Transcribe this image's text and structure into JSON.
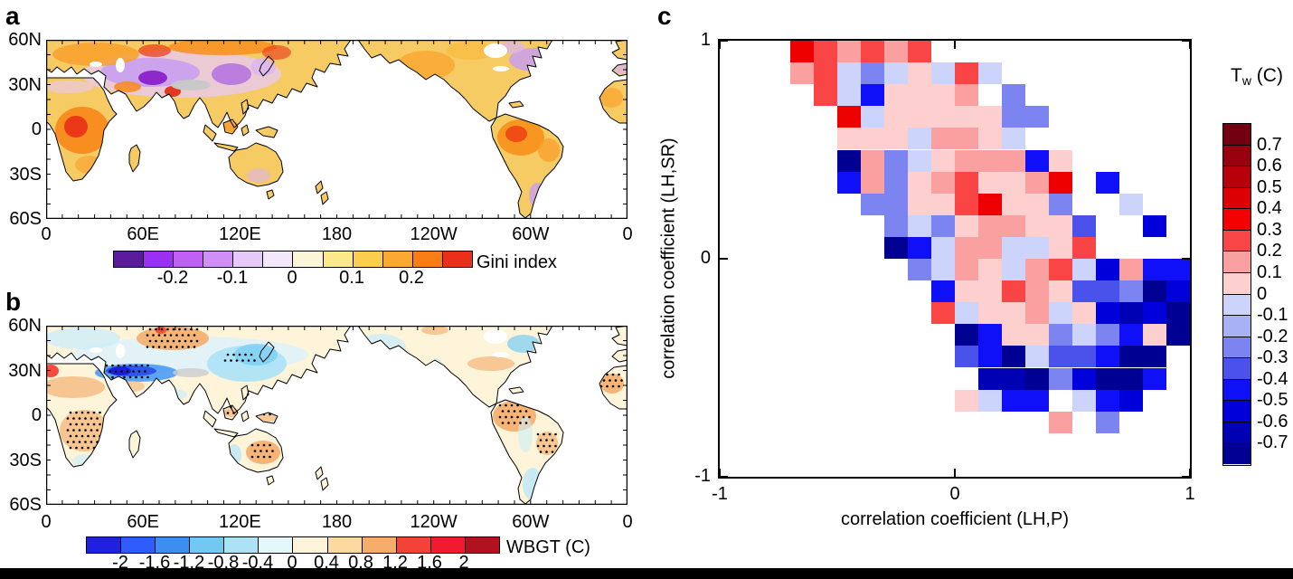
{
  "panel_a": {
    "label": "a"
  },
  "panel_b": {
    "label": "b"
  },
  "panel_c": {
    "label": "c",
    "xlabel": "correlation coefficient (LH,P)",
    "ylabel": "correlation coefficient (LH,SR)",
    "colorbar_title_main": "T",
    "colorbar_title_sub": "w",
    "colorbar_title_unit": " (C)"
  },
  "chart_data": [
    {
      "type": "map-contour",
      "panel": "a",
      "variable": "Gini index",
      "x_ticks": [
        "0",
        "60E",
        "120E",
        "180",
        "120W",
        "60W",
        "0"
      ],
      "y_ticks": [
        "60N",
        "30N",
        "0",
        "30S",
        "60S"
      ],
      "lat_range": [
        "60S",
        "60N"
      ],
      "lon_range": [
        "0",
        "360"
      ],
      "colorbar": {
        "title": "Gini index",
        "segment_colors": [
          "#5b199b",
          "#9b30f2",
          "#bf5ff5",
          "#d08ff7",
          "#e7c9f9",
          "#f3e8fb",
          "#fdf5d8",
          "#fde98a",
          "#fcce4e",
          "#fba932",
          "#f87d16",
          "#e93018"
        ],
        "tick_labels": [
          "-0.2",
          "-0.1",
          "0",
          "0.1",
          "0.2"
        ],
        "tick_segment_positions": [
          2,
          4,
          6,
          8,
          10
        ],
        "value_range": [
          -0.3,
          0.3
        ],
        "segment_step": 0.05
      },
      "description": "Global map of Gini index anomalies: orange/red over Africa, Siberia, Amazon and western North America; purple over central Asia, eastern China and northeastern North America"
    },
    {
      "type": "map-contour",
      "panel": "b",
      "variable": "WBGT (C)",
      "x_ticks": [
        "0",
        "60E",
        "120E",
        "180",
        "120W",
        "60W",
        "0"
      ],
      "y_ticks": [
        "60N",
        "30N",
        "0",
        "30S",
        "60S"
      ],
      "lat_range": [
        "60S",
        "60N"
      ],
      "lon_range": [
        "0",
        "360"
      ],
      "colorbar": {
        "title": "WBGT (C)",
        "segment_colors": [
          "#2020e0",
          "#2e5cff",
          "#3e8ef2",
          "#72c8f0",
          "#abe2f6",
          "#e4f7fb",
          "#fdf4d9",
          "#fbd9a0",
          "#f5ad6c",
          "#f54238",
          "#f21a2e",
          "#b2121f"
        ],
        "tick_labels": [
          "-2",
          "-1.6",
          "-1.2",
          "-0.8",
          "-0.4",
          "0",
          "0.4",
          "0.8",
          "1.2",
          "1.6",
          "2"
        ],
        "tick_segment_positions": [
          1,
          2,
          3,
          4,
          5,
          6,
          7,
          8,
          9,
          10,
          11
        ],
        "value_range": [
          -2.4,
          2.4
        ],
        "segment_step": 0.4
      },
      "description": "Global map of WBGT change: strong blue band over Middle East / northern India, tan-orange with stippling over Siberia, central Africa, Amazon, eastern Brazil and Australia; red spot at far west edge"
    },
    {
      "type": "heatmap",
      "panel": "c",
      "xlabel": "correlation coefficient (LH,P)",
      "ylabel": "correlation coefficient (LH,SR)",
      "x_range": [
        -1,
        1
      ],
      "y_range": [
        -1,
        1
      ],
      "x_ticks": [
        "-1",
        "0",
        "1"
      ],
      "y_ticks": [
        "1",
        "0",
        "-1"
      ],
      "grid": {
        "cols": 20,
        "rows": 20,
        "row_order": "top row = y bin 0.9 to 1.0, left col = x bin -1.0 to -0.9",
        "cell_codes": [
          "...hRsRsR...........",
          "...sRlmlplRl........",
          "....RlBppps.m.......",
          ".....hlpppppmm......",
          ".....ppplsspl.......",
          ".....DsmlpsssBp.....",
          ".....BsmpsRppsh.B...",
          "......mmppRhppm..l..",
          ".......mlmpssppv..n.",
          ".......DBlssllpR....",
          "........mlsplsRlnsBB",
          ".........BppRspvvmDn",
          ".........RlppslpnNnD",
          "..........DBppmlmBpD",
          "..........vBDlvvBDD.",
          "...........NNDmnDDB.",
          "..........plBB.lBn..",
          "..............s.m...",
          "....................",
          "...................."
        ],
        "palette": {
          "h": "#ee0000",
          "R": "#f94545",
          "s": "#fba0a0",
          "p": "#fdcfcf",
          "l": "#ccd4fb",
          "m": "#7b84f0",
          "v": "#4b52ec",
          "B": "#1010f8",
          "n": "#0000da",
          "N": "#0000b4",
          "D": "#000092"
        },
        "palette_tw_values": {
          "h": "0.3 to 0.5",
          "R": "0.2 to 0.3",
          "s": "0.1 to 0.2",
          "p": "0 to 0.1",
          "l": "-0.1 to 0",
          "m": "-0.3 to -0.1",
          "v": "-0.4 to -0.3",
          "B": "-0.5 to -0.4",
          "n": "-0.6 to -0.5",
          "N": "-0.7 to -0.6",
          "D": "below -0.7",
          ".": "no data"
        }
      },
      "colorbar": {
        "title": "Tw (C)",
        "segment_colors": [
          "#730010",
          "#98000d",
          "#b8000a",
          "#dc0005",
          "#f40000",
          "#f94545",
          "#fba0a0",
          "#fdcfcf",
          "#ccd4fb",
          "#a9b1f6",
          "#7b84f0",
          "#4b52ec",
          "#1010f8",
          "#0000da",
          "#0000b4",
          "#000092"
        ],
        "tick_labels": [
          "0.7",
          "0.6",
          "0.5",
          "0.4",
          "0.3",
          "0.2",
          "0.1",
          "0",
          "-0.1",
          "-0.2",
          "-0.3",
          "-0.4",
          "-0.5",
          "-0.6",
          "-0.7"
        ]
      }
    }
  ]
}
